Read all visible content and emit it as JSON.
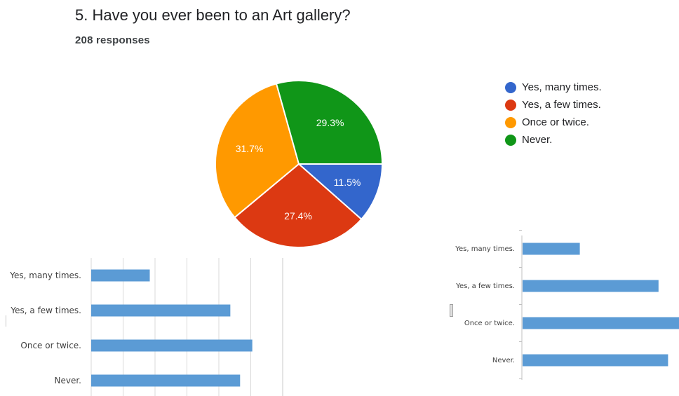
{
  "question": {
    "title": "5. Have you ever been to an Art gallery?",
    "responses": "208 responses"
  },
  "colors": {
    "blue": "#3366cc",
    "red": "#dc3912",
    "orange": "#ff9900",
    "green": "#109618",
    "bar": "#5b9bd5"
  },
  "chart_data": [
    {
      "type": "pie",
      "categories": [
        "Yes, many times.",
        "Yes, a few times.",
        "Once or twice.",
        "Never."
      ],
      "values": [
        11.5,
        27.4,
        31.7,
        29.3
      ],
      "labels": [
        "11.5%",
        "27.4%",
        "31.7%",
        "29.3%"
      ],
      "colors": [
        "#3366cc",
        "#dc3912",
        "#ff9900",
        "#109618"
      ],
      "legend": "right"
    },
    {
      "type": "bar",
      "orientation": "horizontal",
      "categories": [
        "Yes, many times.",
        "Yes, a few times.",
        "Once or twice.",
        "Never."
      ],
      "values": [
        24,
        57,
        66,
        61
      ],
      "grid": true
    },
    {
      "type": "bar",
      "orientation": "horizontal",
      "categories": [
        "Yes, many times.",
        "Yes, a few times.",
        "Once or twice.",
        "Never."
      ],
      "values": [
        24,
        57,
        66,
        61
      ],
      "grid": false
    }
  ]
}
